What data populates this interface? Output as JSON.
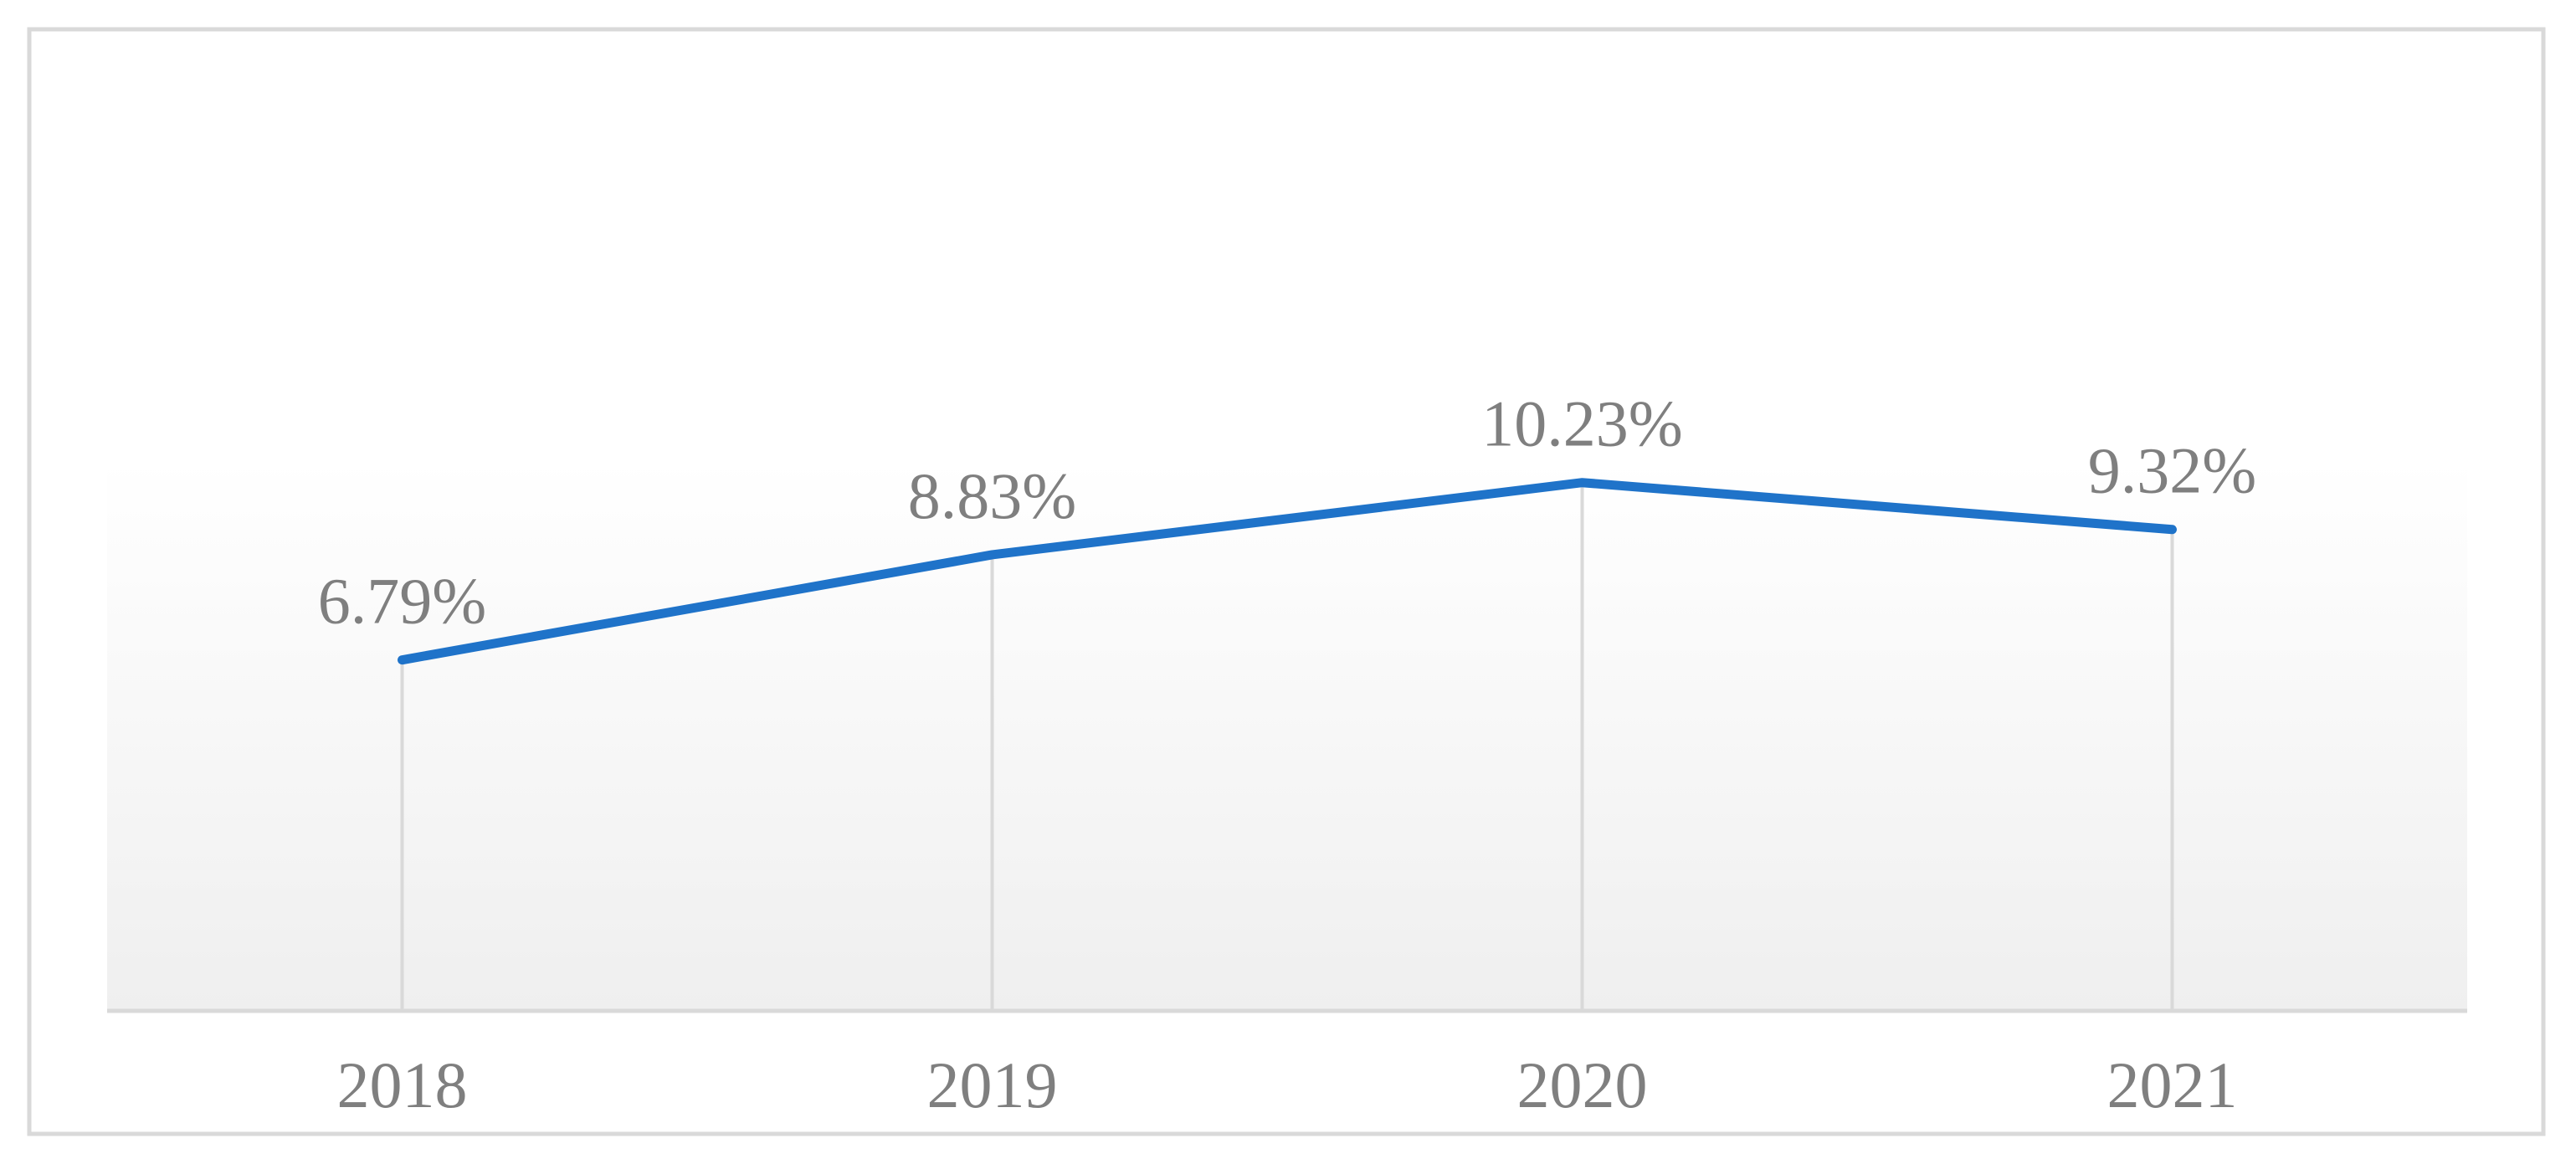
{
  "chart_data": {
    "type": "line",
    "categories": [
      "2018",
      "2019",
      "2020",
      "2021"
    ],
    "series": [
      {
        "color": "#1f73c9",
        "values": [
          6.79,
          8.83,
          10.23,
          9.32
        ],
        "value_labels": [
          "6.79%",
          "8.83%",
          "10.23%",
          "9.32%"
        ]
      }
    ],
    "ylim": [
      0,
      18
    ]
  }
}
